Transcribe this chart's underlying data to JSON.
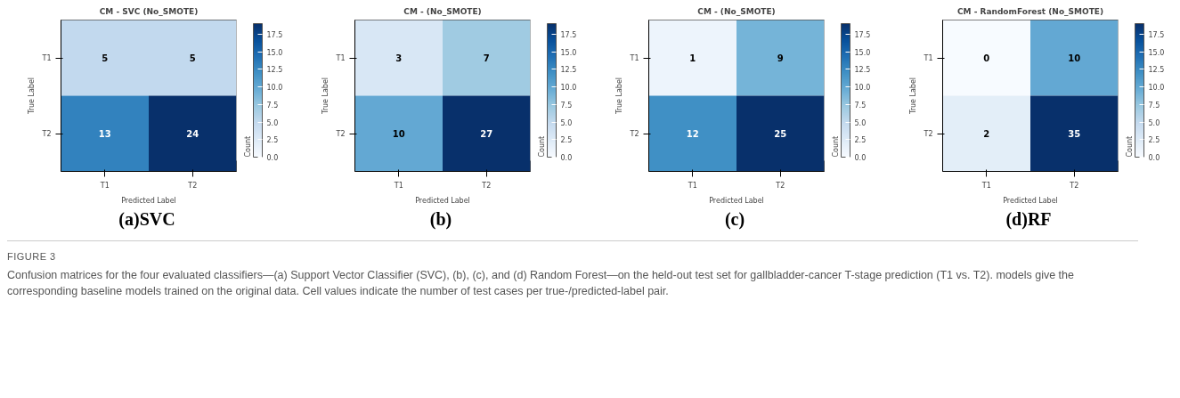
{
  "chart_data": [
    {
      "type": "heatmap",
      "title": "CM - SVC (No_SMOTE)",
      "xlabel": "Predicted Label",
      "ylabel": "True Label",
      "clabel": "Count",
      "categories": [
        "T1",
        "T2"
      ],
      "y_categories": [
        "T1",
        "T2"
      ],
      "cells": [
        [
          5,
          5
        ],
        [
          13,
          24
        ]
      ],
      "data_labels": true,
      "clim": [
        0,
        19
      ],
      "cticks": [
        {
          "value": 0,
          "label": "0.0"
        },
        2.5,
        {
          "value": 5,
          "label": "5.0"
        },
        7.5,
        {
          "value": 10,
          "label": "10.0"
        },
        12.5,
        {
          "value": 15,
          "label": "15.0"
        },
        17.5
      ],
      "annotations": [
        "(a)SVC",
        "FIGURE 3",
        "Confusion matrices for the four evaluated classifiers—(a) Support Vector Classifier (SVC), (b), (c), and (d) Random Forest—on the held-out test set for gallbladder-cancer T-stage prediction (T1 vs. T2). models give the corresponding baseline models trained on the original data. Cell values indicate the number of test cases per true-/predicted-label pair."
      ]
    },
    {
      "type": "heatmap",
      "title": "CM - (No_SMOTE)",
      "xlabel": "Predicted Label",
      "ylabel": "True Label",
      "clabel": "Count",
      "categories": [
        "T1",
        "T2"
      ],
      "y_categories": [
        "T1",
        "T2"
      ],
      "cells": [
        [
          3,
          7
        ],
        [
          10,
          27
        ]
      ],
      "data_labels": true,
      "clim": [
        0,
        19
      ],
      "cticks": [
        {
          "value": 0,
          "label": "0.0"
        },
        2.5,
        {
          "value": 5,
          "label": "5.0"
        },
        7.5,
        {
          "value": 10,
          "label": "10.0"
        },
        12.5,
        {
          "value": 15,
          "label": "15.0"
        },
        17.5
      ],
      "annotations": [
        "(b)"
      ]
    },
    {
      "type": "heatmap",
      "title": "CM - (No_SMOTE)",
      "xlabel": "Predicted Label",
      "ylabel": "True Label",
      "clabel": "Count",
      "categories": [
        "T1",
        "T2"
      ],
      "y_categories": [
        "T1",
        "T2"
      ],
      "cells": [
        [
          1,
          9
        ],
        [
          12,
          25
        ]
      ],
      "data_labels": true,
      "clim": [
        0,
        19
      ],
      "cticks": [
        {
          "value": 0,
          "label": "0.0"
        },
        2.5,
        {
          "value": 5,
          "label": "5.0"
        },
        7.5,
        {
          "value": 10,
          "label": "10.0"
        },
        12.5,
        {
          "value": 15,
          "label": "15.0"
        },
        17.5
      ],
      "annotations": [
        "(c)"
      ]
    },
    {
      "type": "heatmap",
      "title": "CM - RandomForest (No_SMOTE)",
      "xlabel": "Predicted Label",
      "ylabel": "True Label",
      "clabel": "Count",
      "categories": [
        "T1",
        "T2"
      ],
      "y_categories": [
        "T1",
        "T2"
      ],
      "cells": [
        [
          0,
          10
        ],
        [
          2,
          35
        ]
      ],
      "data_labels": true,
      "clim": [
        0,
        19
      ],
      "cticks": [
        {
          "value": 0,
          "label": "0.0"
        },
        2.5,
        {
          "value": 5,
          "label": "5.0"
        },
        7.5,
        {
          "value": 10,
          "label": "10.0"
        },
        12.5,
        {
          "value": 15,
          "label": "15.0"
        },
        17.5
      ],
      "annotations": [
        "(d)RF"
      ]
    }
  ]
}
